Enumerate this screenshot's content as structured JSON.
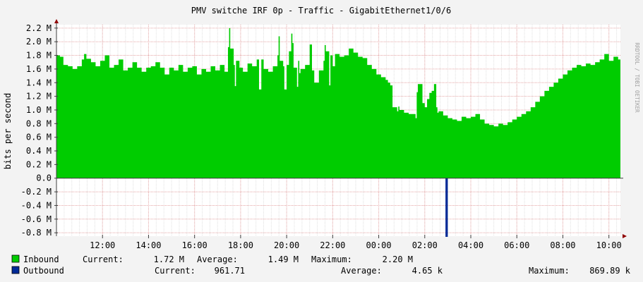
{
  "chart_data": {
    "type": "area",
    "title": "PMV switche IRF 0p - Traffic - GigabitEthernet1/0/6",
    "ylabel": "bits per second",
    "watermark": "RRDTOOL / TOBI OETIKER",
    "ylim": [
      -0.85,
      2.25
    ],
    "y_ticks": [
      -0.8,
      -0.6,
      -0.4,
      -0.2,
      0.0,
      0.2,
      0.4,
      0.6,
      0.8,
      1.0,
      1.2,
      1.4,
      1.6,
      1.8,
      2.0,
      2.2
    ],
    "y_tick_labels": [
      "-0.8 M",
      "-0.6 M",
      "-0.4 M",
      "-0.2 M",
      "0.0",
      "0.2 M",
      "0.4 M",
      "0.6 M",
      "0.8 M",
      "1.0 M",
      "1.2 M",
      "1.4 M",
      "1.6 M",
      "1.8 M",
      "2.0 M",
      "2.2 M"
    ],
    "xlim": [
      10.0,
      34.5
    ],
    "x_ticks": [
      12,
      14,
      16,
      18,
      20,
      22,
      24,
      26,
      28,
      30,
      32,
      34
    ],
    "x_tick_labels": [
      "12:00",
      "14:00",
      "16:00",
      "18:00",
      "20:00",
      "22:00",
      "00:00",
      "02:00",
      "04:00",
      "06:00",
      "08:00",
      "10:00"
    ],
    "grid": true,
    "colors": {
      "inbound": "#00cc00",
      "outbound": "#002a97",
      "background": "#f3f3f3",
      "canvas": "#ffffff",
      "major_grid": "#e5a5a5",
      "minor_grid": "#e0e0e0",
      "axis": "#404040",
      "arrow": "#900000"
    },
    "series": [
      {
        "name": "Inbound",
        "color": "#00cc00",
        "x": [
          10.0,
          10.15,
          10.3,
          10.5,
          10.7,
          10.9,
          11.1,
          11.2,
          11.3,
          11.5,
          11.7,
          11.9,
          12.1,
          12.3,
          12.5,
          12.7,
          12.9,
          13.1,
          13.3,
          13.5,
          13.7,
          13.9,
          14.1,
          14.3,
          14.5,
          14.7,
          14.9,
          15.1,
          15.3,
          15.5,
          15.7,
          15.9,
          16.1,
          16.3,
          16.5,
          16.7,
          16.9,
          17.1,
          17.3,
          17.45,
          17.5,
          17.55,
          17.7,
          17.75,
          17.8,
          17.95,
          18.1,
          18.3,
          18.5,
          18.7,
          18.8,
          18.9,
          19.0,
          19.2,
          19.4,
          19.6,
          19.65,
          19.7,
          19.85,
          19.9,
          20.0,
          20.1,
          20.2,
          20.25,
          20.3,
          20.45,
          20.5,
          20.55,
          20.6,
          20.8,
          21.0,
          21.1,
          21.2,
          21.4,
          21.6,
          21.65,
          21.7,
          21.85,
          21.9,
          22.0,
          22.1,
          22.3,
          22.5,
          22.7,
          22.9,
          23.1,
          23.3,
          23.5,
          23.7,
          23.9,
          24.1,
          24.3,
          24.4,
          24.5,
          24.6,
          24.8,
          24.85,
          24.9,
          25.1,
          25.3,
          25.6,
          25.65,
          25.7,
          25.9,
          26.0,
          26.1,
          26.2,
          26.3,
          26.4,
          26.5,
          26.55,
          26.6,
          26.8,
          27.0,
          27.2,
          27.4,
          27.6,
          27.8,
          28.0,
          28.2,
          28.4,
          28.6,
          28.8,
          29.0,
          29.2,
          29.4,
          29.6,
          29.8,
          30.0,
          30.2,
          30.4,
          30.6,
          30.8,
          31.0,
          31.2,
          31.4,
          31.6,
          31.8,
          32.0,
          32.2,
          32.4,
          32.6,
          32.8,
          33.0,
          33.2,
          33.4,
          33.6,
          33.8,
          34.0,
          34.2,
          34.4,
          34.5
        ],
        "values": [
          1.8,
          1.78,
          1.66,
          1.64,
          1.6,
          1.64,
          1.74,
          1.82,
          1.75,
          1.7,
          1.64,
          1.72,
          1.8,
          1.62,
          1.66,
          1.74,
          1.58,
          1.62,
          1.7,
          1.62,
          1.56,
          1.62,
          1.64,
          1.7,
          1.62,
          1.52,
          1.62,
          1.58,
          1.66,
          1.56,
          1.62,
          1.64,
          1.52,
          1.6,
          1.56,
          1.64,
          1.58,
          1.66,
          1.56,
          1.92,
          2.2,
          1.9,
          1.66,
          1.35,
          1.72,
          1.62,
          1.56,
          1.68,
          1.64,
          1.74,
          1.3,
          1.74,
          1.6,
          1.56,
          1.64,
          1.8,
          2.08,
          1.72,
          1.64,
          1.3,
          1.66,
          1.86,
          2.12,
          1.98,
          1.62,
          1.34,
          1.72,
          1.54,
          1.6,
          1.66,
          1.96,
          1.58,
          1.4,
          1.58,
          1.72,
          1.95,
          1.86,
          1.36,
          1.8,
          1.64,
          1.82,
          1.78,
          1.8,
          1.9,
          1.84,
          1.78,
          1.76,
          1.66,
          1.6,
          1.52,
          1.48,
          1.44,
          1.4,
          1.36,
          1.04,
          0.98,
          1.05,
          1.0,
          0.96,
          0.94,
          0.88,
          1.26,
          1.38,
          1.1,
          1.04,
          1.16,
          1.25,
          1.28,
          1.38,
          1.04,
          0.96,
          0.98,
          0.92,
          0.88,
          0.86,
          0.84,
          0.9,
          0.88,
          0.9,
          0.94,
          0.86,
          0.8,
          0.78,
          0.76,
          0.8,
          0.78,
          0.82,
          0.86,
          0.9,
          0.94,
          0.98,
          1.04,
          1.12,
          1.2,
          1.28,
          1.34,
          1.4,
          1.46,
          1.52,
          1.58,
          1.62,
          1.66,
          1.64,
          1.68,
          1.66,
          1.7,
          1.74,
          1.82,
          1.72,
          1.78,
          1.74,
          1.7
        ]
      },
      {
        "name": "Outbound",
        "color": "#002a97",
        "x": [
          26.9,
          27.0
        ],
        "values": [
          -0.86,
          -0.86
        ]
      }
    ]
  },
  "legend": {
    "inbound": {
      "name": "Inbound",
      "current_label": "Current:",
      "current": "1.72 M",
      "average_label": "Average:",
      "average": "1.49 M",
      "maximum_label": "Maximum:",
      "maximum": "2.20 M"
    },
    "outbound": {
      "name": "Outbound",
      "current_label": "Current:",
      "current": "961.71",
      "average_label": "Average:",
      "average": "4.65 k",
      "maximum_label": "Maximum:",
      "maximum": "869.89 k"
    }
  }
}
